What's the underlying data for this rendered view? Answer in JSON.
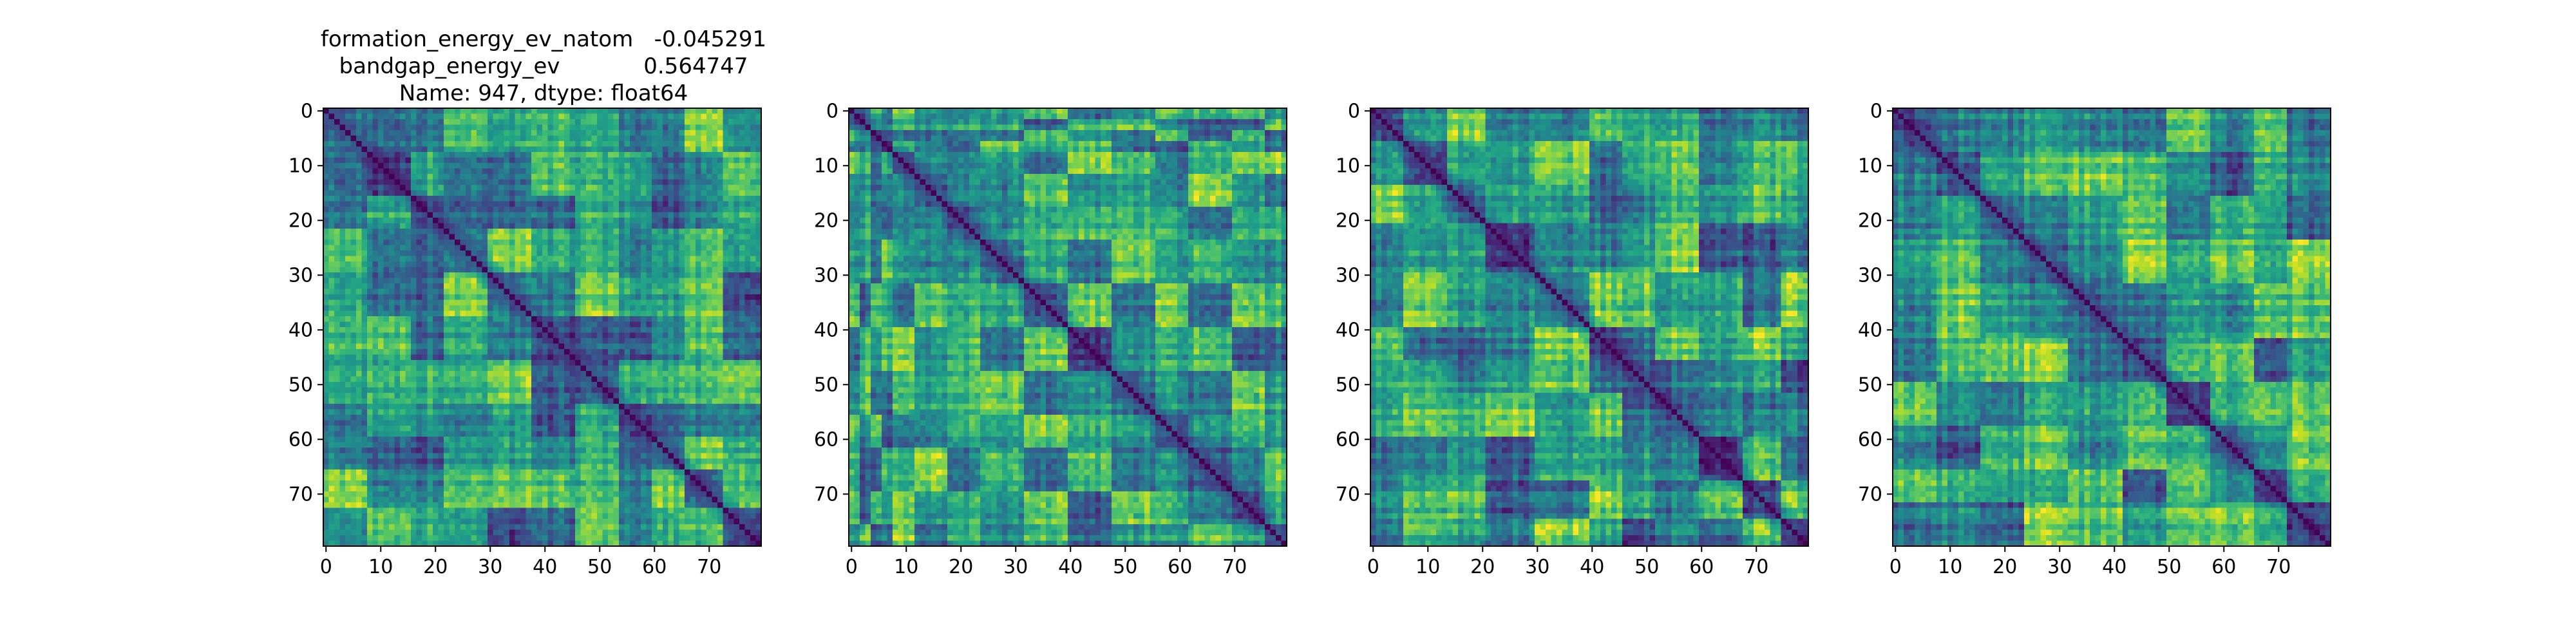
{
  "figure": {
    "title_lines": [
      "formation_energy_ev_natom   -0.045291",
      "bandgap_energy_ev            0.564747",
      "Name: 947, dtype: float64"
    ]
  },
  "chart_data": [
    {
      "type": "heatmap",
      "size": 80,
      "colormap": "viridis",
      "value_range": [
        0,
        1
      ],
      "diagonal_value": 0,
      "xlim": [
        0,
        79
      ],
      "ylim": [
        79,
        0
      ],
      "xticks": [
        0,
        10,
        20,
        30,
        40,
        50,
        60,
        70
      ],
      "yticks": [
        0,
        10,
        20,
        30,
        40,
        50,
        60,
        70
      ],
      "xtick_labels": [
        "0",
        "10",
        "20",
        "30",
        "40",
        "50",
        "60",
        "70"
      ],
      "ytick_labels": [
        "0",
        "10",
        "20",
        "30",
        "40",
        "50",
        "60",
        "70"
      ],
      "block_boundaries": [
        0,
        8,
        16,
        22,
        30,
        38,
        46,
        54,
        60,
        66,
        73,
        80
      ],
      "seed": 947
    },
    {
      "type": "heatmap",
      "size": 80,
      "colormap": "viridis",
      "value_range": [
        0,
        1
      ],
      "diagonal_value": 0,
      "xlim": [
        0,
        79
      ],
      "ylim": [
        79,
        0
      ],
      "xticks": [
        0,
        10,
        20,
        30,
        40,
        50,
        60,
        70
      ],
      "yticks": [
        0,
        10,
        20,
        30,
        40,
        50,
        60,
        70
      ],
      "xtick_labels": [
        "0",
        "10",
        "20",
        "30",
        "40",
        "50",
        "60",
        "70"
      ],
      "ytick_labels": [
        "0",
        "10",
        "20",
        "30",
        "40",
        "50",
        "60",
        "70"
      ],
      "block_boundaries": [
        0,
        2,
        4,
        6,
        8,
        12,
        18,
        24,
        32,
        40,
        48,
        56,
        62,
        70,
        76,
        80
      ],
      "seed": 1123
    },
    {
      "type": "heatmap",
      "size": 80,
      "colormap": "viridis",
      "value_range": [
        0,
        1
      ],
      "diagonal_value": 0,
      "xlim": [
        0,
        79
      ],
      "ylim": [
        79,
        0
      ],
      "xticks": [
        0,
        10,
        20,
        30,
        40,
        50,
        60,
        70
      ],
      "yticks": [
        0,
        10,
        20,
        30,
        40,
        50,
        60,
        70
      ],
      "xtick_labels": [
        "0",
        "10",
        "20",
        "30",
        "40",
        "50",
        "60",
        "70"
      ],
      "ytick_labels": [
        "0",
        "10",
        "20",
        "30",
        "40",
        "50",
        "60",
        "70"
      ],
      "block_boundaries": [
        0,
        6,
        14,
        21,
        30,
        40,
        46,
        52,
        60,
        68,
        75,
        80
      ],
      "seed": 2207
    },
    {
      "type": "heatmap",
      "size": 80,
      "colormap": "viridis",
      "value_range": [
        0,
        1
      ],
      "diagonal_value": 0,
      "xlim": [
        0,
        79
      ],
      "ylim": [
        79,
        0
      ],
      "xticks": [
        0,
        10,
        20,
        30,
        40,
        50,
        60,
        70
      ],
      "yticks": [
        0,
        10,
        20,
        30,
        40,
        50,
        60,
        70
      ],
      "xtick_labels": [
        "0",
        "10",
        "20",
        "30",
        "40",
        "50",
        "60",
        "70"
      ],
      "ytick_labels": [
        "0",
        "10",
        "20",
        "30",
        "40",
        "50",
        "60",
        "70"
      ],
      "block_boundaries": [
        0,
        8,
        16,
        24,
        32,
        42,
        50,
        58,
        66,
        72,
        80
      ],
      "seed": 3319
    }
  ]
}
